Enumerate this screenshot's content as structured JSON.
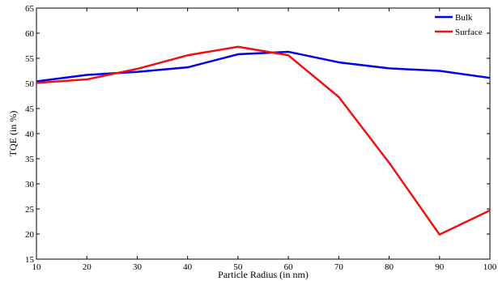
{
  "chart_data": {
    "type": "line",
    "title": "",
    "xlabel": "Particle Radius (in nm)",
    "ylabel": "TQE (in %)",
    "xlim": [
      10,
      100
    ],
    "ylim": [
      15,
      65
    ],
    "x_ticks": [
      "10",
      "20",
      "30",
      "40",
      "50",
      "60",
      "70",
      "80",
      "90",
      "100"
    ],
    "y_ticks": [
      "15",
      "20",
      "25",
      "30",
      "35",
      "40",
      "45",
      "50",
      "55",
      "60",
      "65"
    ],
    "grid": false,
    "legend_position": "top-right",
    "x": [
      10,
      20,
      30,
      40,
      50,
      60,
      70,
      80,
      90,
      100
    ],
    "series": [
      {
        "name": "Bulk",
        "color": "#0000ee",
        "values": [
          50.4,
          51.7,
          52.3,
          53.2,
          55.8,
          56.3,
          54.2,
          53.0,
          52.5,
          51.1
        ]
      },
      {
        "name": "Surface",
        "color": "#ee1111",
        "values": [
          50.1,
          50.8,
          52.9,
          55.6,
          57.3,
          55.6,
          47.3,
          34.2,
          19.9,
          24.7
        ]
      }
    ]
  }
}
